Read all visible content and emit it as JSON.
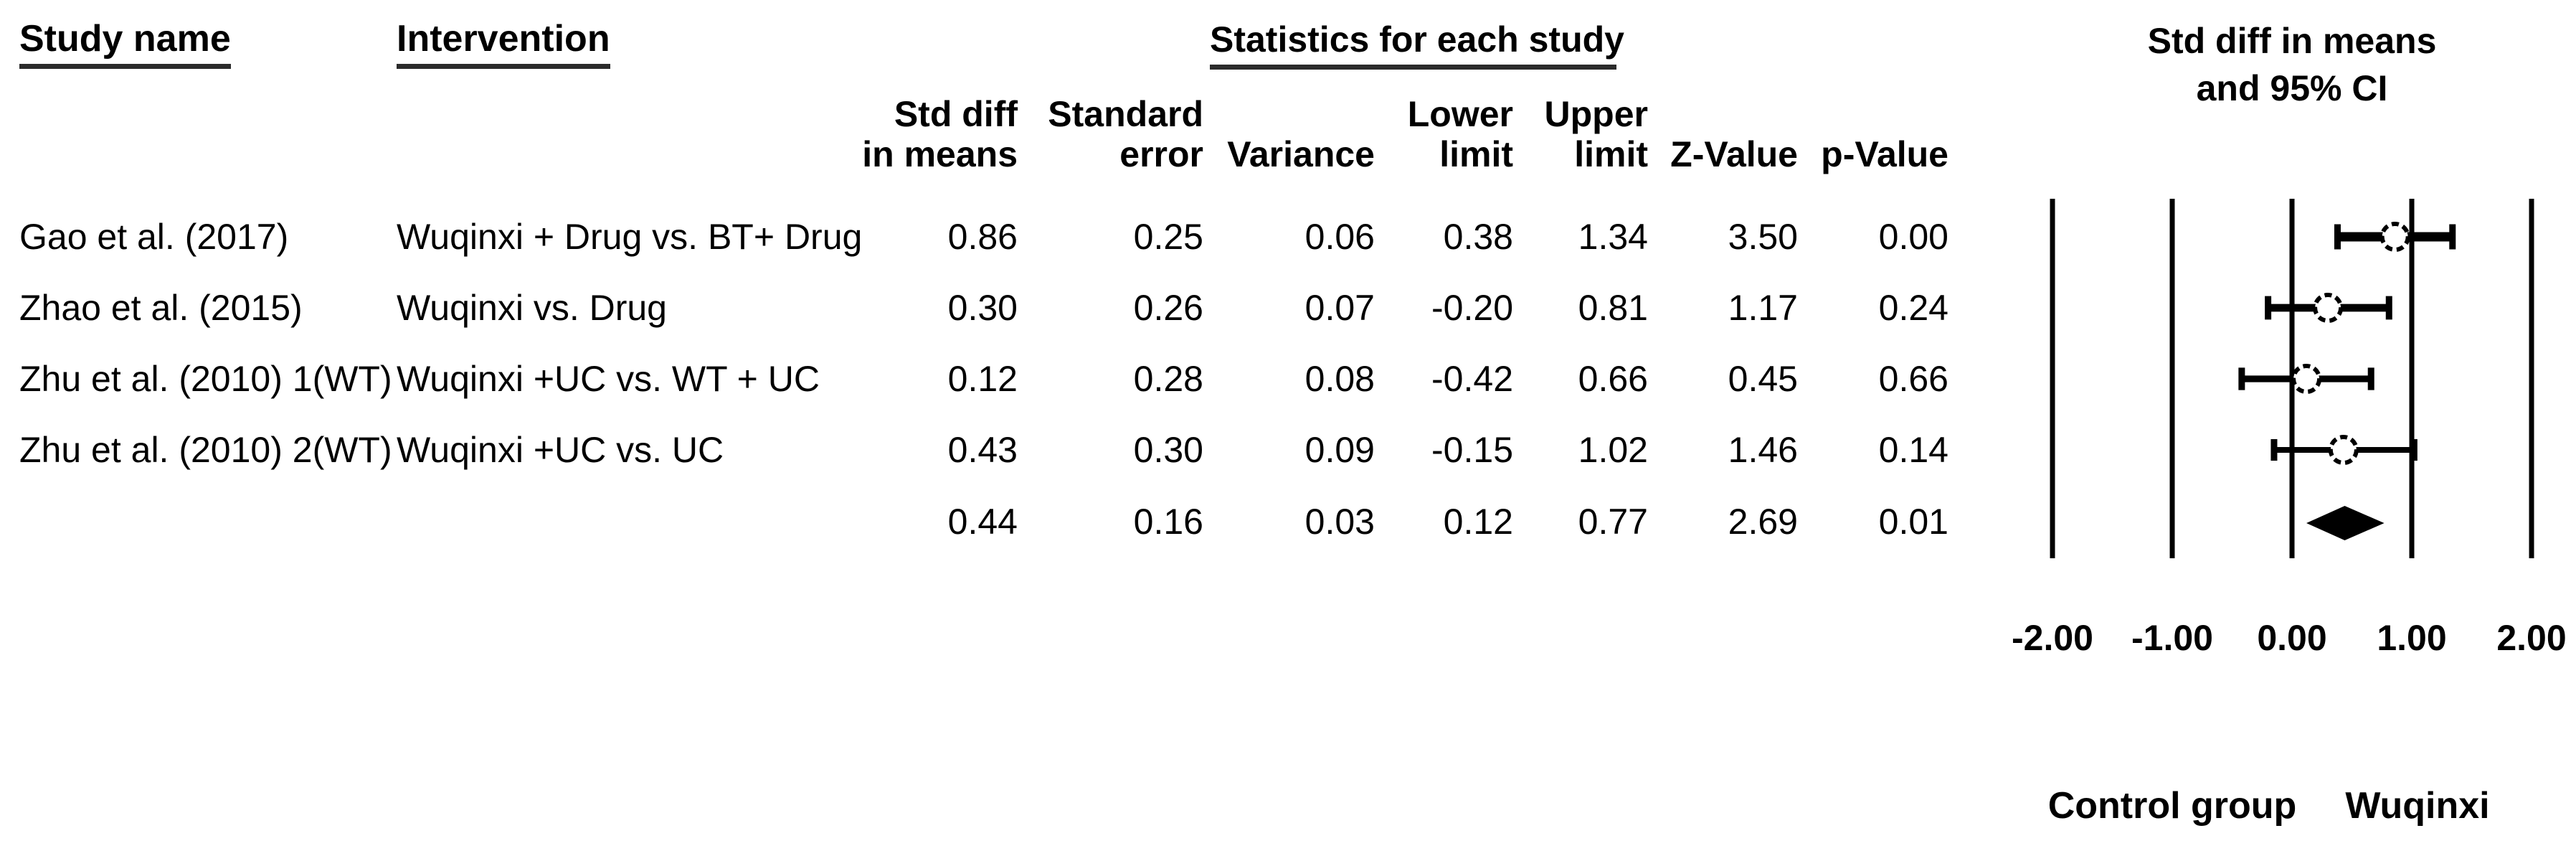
{
  "table": {
    "headers": {
      "study": "Study name",
      "intervention": "Intervention",
      "statistics_title": "Statistics for each study",
      "plot_title_line1": "Std diff in means",
      "plot_title_line2": "and 95% CI",
      "columns": {
        "std_diff": "Std diff\nin means",
        "standard_error": "Standard\nerror",
        "variance": "Variance",
        "lower_limit": "Lower\nlimit",
        "upper_limit": "Upper\nlimit",
        "z_value": "Z-Value",
        "p_value": "p-Value"
      }
    },
    "rows": [
      {
        "study": "Gao et al. (2017)",
        "intervention": "Wuqinxi + Drug vs. BT+ Drug",
        "std_diff": "0.86",
        "standard_error": "0.25",
        "variance": "0.06",
        "lower_limit": "0.38",
        "upper_limit": "1.34",
        "z_value": "3.50",
        "p_value": "0.00"
      },
      {
        "study": "Zhao et al. (2015)",
        "intervention": "Wuqinxi vs. Drug",
        "std_diff": "0.30",
        "standard_error": "0.26",
        "variance": "0.07",
        "lower_limit": "-0.20",
        "upper_limit": "0.81",
        "z_value": "1.17",
        "p_value": "0.24"
      },
      {
        "study": "Zhu et al. (2010) 1(WT)",
        "intervention": "Wuqinxi +UC  vs. WT + UC",
        "std_diff": "0.12",
        "standard_error": "0.28",
        "variance": "0.08",
        "lower_limit": "-0.42",
        "upper_limit": "0.66",
        "z_value": "0.45",
        "p_value": "0.66"
      },
      {
        "study": "Zhu et al. (2010) 2(WT)",
        "intervention": "Wuqinxi +UC  vs. UC",
        "std_diff": "0.43",
        "standard_error": "0.30",
        "variance": "0.09",
        "lower_limit": "-0.15",
        "upper_limit": "1.02",
        "z_value": "1.46",
        "p_value": "0.14"
      },
      {
        "study": "",
        "intervention": "",
        "std_diff": "0.44",
        "standard_error": "0.16",
        "variance": "0.03",
        "lower_limit": "0.12",
        "upper_limit": "0.77",
        "z_value": "2.69",
        "p_value": "0.01"
      }
    ]
  },
  "footer": {
    "left_label": "Control group",
    "right_label": "Wuqinxi"
  },
  "chart_data": {
    "type": "scatter",
    "subtype": "forest_plot",
    "title": "Std diff in means and 95% CI",
    "x_axis": {
      "range": [
        -2.0,
        2.0
      ],
      "ticks": [
        -2.0,
        -1.0,
        0.0,
        1.0,
        2.0
      ],
      "tick_labels": [
        "-2.00",
        "-1.00",
        "0.00",
        "1.00",
        "2.00"
      ]
    },
    "studies": [
      {
        "name": "Gao et al. (2017)",
        "estimate": 0.86,
        "standard_error": 0.25,
        "variance": 0.06,
        "lower": 0.38,
        "upper": 1.34,
        "z": 3.5,
        "p": 0.0
      },
      {
        "name": "Zhao et al. (2015)",
        "estimate": 0.3,
        "standard_error": 0.26,
        "variance": 0.07,
        "lower": -0.2,
        "upper": 0.81,
        "z": 1.17,
        "p": 0.24
      },
      {
        "name": "Zhu et al. (2010) 1(WT)",
        "estimate": 0.12,
        "standard_error": 0.28,
        "variance": 0.08,
        "lower": -0.42,
        "upper": 0.66,
        "z": 0.45,
        "p": 0.66
      },
      {
        "name": "Zhu et al. (2010) 2(WT)",
        "estimate": 0.43,
        "standard_error": 0.3,
        "variance": 0.09,
        "lower": -0.15,
        "upper": 1.02,
        "z": 1.46,
        "p": 0.14
      }
    ],
    "summary": {
      "estimate": 0.44,
      "standard_error": 0.16,
      "variance": 0.03,
      "lower": 0.12,
      "upper": 0.77,
      "z": 2.69,
      "p": 0.01,
      "shape": "diamond"
    },
    "favours_left_label": "Control group",
    "favours_right_label": "Wuqinxi",
    "grid": "vertical-gridlines-at-ticks",
    "legend": "none"
  }
}
